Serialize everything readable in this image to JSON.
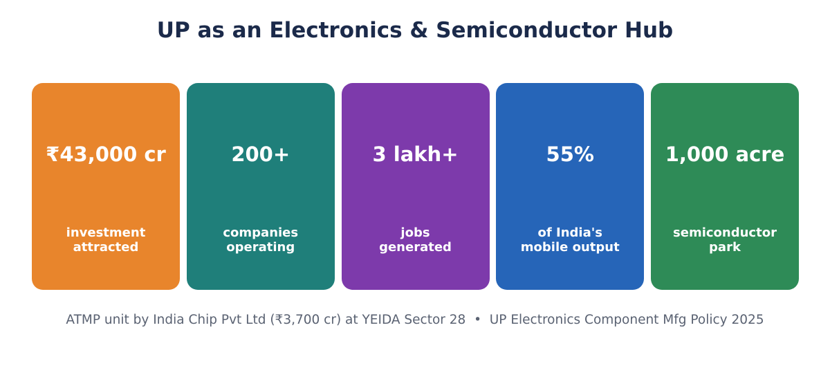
{
  "title": "UP as an Electronics & Semiconductor Hub",
  "cards": [
    {
      "value": "₹43,000 cr",
      "label": [
        "investment",
        "attracted"
      ],
      "color": "#e8852c"
    },
    {
      "value": "200+",
      "label": [
        "companies",
        "operating"
      ],
      "color": "#1f7f7a"
    },
    {
      "value": "3 lakh+",
      "label": [
        "jobs",
        "generated"
      ],
      "color": "#7d3aab"
    },
    {
      "value": "55%",
      "label": [
        "of India's",
        "mobile output"
      ],
      "color": "#2665b8"
    },
    {
      "value": "1,000 acre",
      "label": [
        "semiconductor",
        "park"
      ],
      "color": "#2e8b57"
    }
  ],
  "footnote": "ATMP unit by India Chip Pvt Ltd (₹3,700 cr) at YEIDA Sector 28  •  UP Electronics Component Mfg Policy 2025"
}
